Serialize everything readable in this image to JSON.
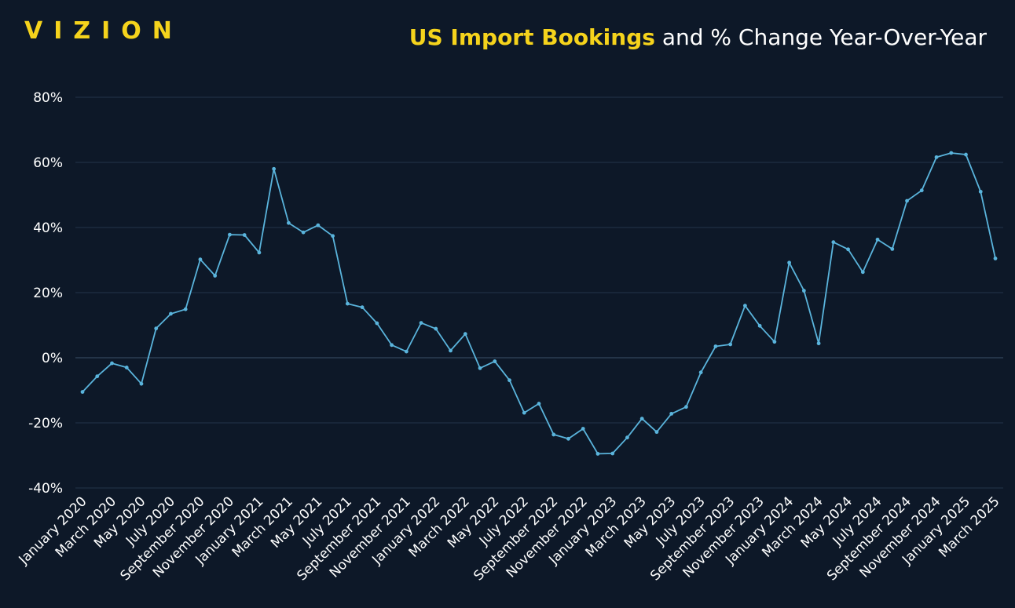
{
  "brand": {
    "logo_text": "VIZION"
  },
  "header": {
    "title_highlight": "US Import Bookings",
    "title_rest": " and % Change Year-Over-Year"
  },
  "colors": {
    "background": "#0d1828",
    "accent": "#f5d31c",
    "line": "#5ab4dc",
    "grid": "#22344a",
    "zero_line": "#3c5068"
  },
  "chart_data": {
    "type": "line",
    "title": "US Import Bookings and % Change Year-Over-Year",
    "xlabel": "",
    "ylabel": "",
    "ylim": [
      -40,
      80
    ],
    "yticks": [
      -40,
      -20,
      0,
      20,
      40,
      60,
      80
    ],
    "ytick_labels": [
      "-40%",
      "-20%",
      "0%",
      "20%",
      "40%",
      "60%",
      "80%"
    ],
    "grid": true,
    "x_tick_labels": [
      "January 2020",
      "March 2020",
      "May 2020",
      "July 2020",
      "September 2020",
      "November 2020",
      "January 2021",
      "March 2021",
      "May 2021",
      "July 2021",
      "September 2021",
      "November 2021",
      "January 2022",
      "March 2022",
      "May 2022",
      "July 2022",
      "September 2022",
      "November 2022",
      "January 2023",
      "March 2023",
      "May 2023",
      "July 2023",
      "September 2023",
      "November 2023",
      "January 2024",
      "March 2024",
      "May 2024",
      "July 2024",
      "September 2024",
      "November 2024",
      "January 2025",
      "March 2025"
    ],
    "series": [
      {
        "name": "% Change Year-Over-Year",
        "values": [
          -10.5,
          -5.7,
          -1.7,
          -3.0,
          -8.0,
          9.0,
          13.5,
          14.9,
          30.2,
          25.2,
          37.8,
          37.7,
          32.3,
          58.0,
          41.4,
          38.5,
          40.7,
          37.4,
          16.6,
          15.5,
          10.6,
          3.9,
          1.9,
          10.7,
          8.9,
          2.2,
          7.3,
          -3.2,
          -1.1,
          -6.9,
          -16.9,
          -14.1,
          -23.6,
          -24.9,
          -21.8,
          -29.5,
          -29.4,
          -24.5,
          -18.7,
          -22.8,
          -17.2,
          -15.1,
          -4.5,
          3.5,
          4.1,
          16.0,
          9.8,
          4.9,
          29.2,
          20.6,
          4.4,
          35.5,
          33.3,
          26.3,
          36.3,
          33.4,
          48.2,
          51.4,
          61.6,
          62.9,
          62.4,
          51.0,
          30.5
        ]
      }
    ]
  }
}
